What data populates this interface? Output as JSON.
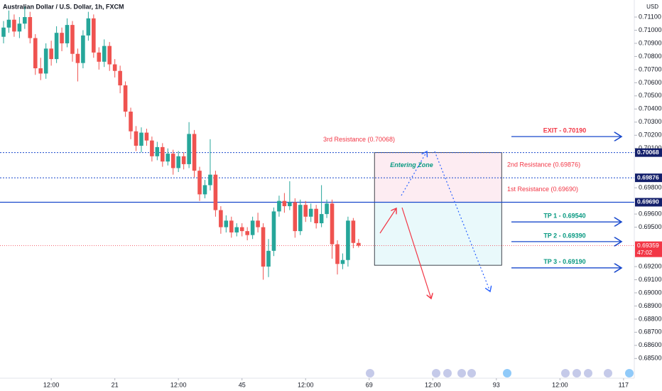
{
  "chart_data": {
    "type": "candlestick",
    "title": "Australian Dollar / U.S. Dollar, 1h, FXCM",
    "currency": "USD",
    "x": [
      0,
      1,
      2,
      3,
      4,
      5,
      6,
      7,
      8,
      9,
      10,
      11,
      12,
      13,
      14,
      15,
      16,
      17,
      18,
      19,
      20,
      21,
      22,
      23,
      24,
      25,
      26,
      27,
      28,
      29,
      30,
      31,
      32,
      33,
      34,
      35,
      36,
      37,
      38,
      39,
      40,
      41,
      42,
      43,
      44,
      45,
      46,
      47,
      48,
      49,
      50,
      51,
      52,
      53,
      54,
      55,
      56,
      57,
      58,
      59,
      60,
      61,
      62,
      63,
      64,
      65,
      66,
      67
    ],
    "open": [
      0.7095,
      0.7102,
      0.7108,
      0.7099,
      0.7105,
      0.711,
      0.7094,
      0.7071,
      0.7067,
      0.7086,
      0.7078,
      0.7098,
      0.709,
      0.7104,
      0.7082,
      0.7075,
      0.7096,
      0.7109,
      0.7083,
      0.7076,
      0.7088,
      0.7074,
      0.7069,
      0.7058,
      0.7038,
      0.7023,
      0.7012,
      0.7022,
      0.7016,
      0.7004,
      0.7011,
      0.7,
      0.7006,
      0.6995,
      0.7004,
      0.6998,
      0.7021,
      0.6993,
      0.6975,
      0.6982,
      0.699,
      0.6963,
      0.695,
      0.6955,
      0.6946,
      0.695,
      0.6947,
      0.6944,
      0.6955,
      0.695,
      0.692,
      0.6932,
      0.6962,
      0.697,
      0.6966,
      0.6969,
      0.6947,
      0.6967,
      0.6958,
      0.6964,
      0.6953,
      0.696,
      0.6968,
      0.6937,
      0.6922,
      0.6925,
      0.6955,
      0.6938
    ],
    "high": [
      0.7107,
      0.7115,
      0.7112,
      0.711,
      0.7118,
      0.7114,
      0.7097,
      0.7079,
      0.709,
      0.7092,
      0.7103,
      0.7102,
      0.7109,
      0.7107,
      0.7086,
      0.71,
      0.7114,
      0.7112,
      0.7087,
      0.7093,
      0.7091,
      0.7078,
      0.7073,
      0.7061,
      0.7041,
      0.7027,
      0.7026,
      0.7025,
      0.7019,
      0.7015,
      0.7014,
      0.701,
      0.7009,
      0.7008,
      0.7007,
      0.703,
      0.7024,
      0.6996,
      0.6986,
      0.7017,
      0.6993,
      0.6966,
      0.6959,
      0.6958,
      0.6953,
      0.6953,
      0.695,
      0.6958,
      0.6961,
      0.6953,
      0.6941,
      0.6965,
      0.6974,
      0.6976,
      0.6985,
      0.6972,
      0.6971,
      0.697,
      0.6968,
      0.6967,
      0.6982,
      0.6971,
      0.6971,
      0.694,
      0.693,
      0.6958,
      0.6957,
      0.6941
    ],
    "low": [
      0.709,
      0.7098,
      0.7095,
      0.7094,
      0.7101,
      0.709,
      0.7066,
      0.7062,
      0.7063,
      0.7073,
      0.7075,
      0.7084,
      0.7087,
      0.7076,
      0.7061,
      0.7071,
      0.7092,
      0.7079,
      0.707,
      0.7072,
      0.7069,
      0.7064,
      0.7052,
      0.7034,
      0.7017,
      0.7008,
      0.7007,
      0.7012,
      0.7,
      0.7001,
      0.6996,
      0.6997,
      0.699,
      0.6992,
      0.6994,
      0.6995,
      0.6988,
      0.697,
      0.6972,
      0.6978,
      0.6958,
      0.6945,
      0.6946,
      0.6942,
      0.6943,
      0.6943,
      0.694,
      0.6941,
      0.6946,
      0.691,
      0.6912,
      0.6928,
      0.6958,
      0.6961,
      0.6963,
      0.6942,
      0.6944,
      0.6954,
      0.6954,
      0.6949,
      0.695,
      0.6957,
      0.6926,
      0.6914,
      0.6918,
      0.692,
      0.6934,
      0.69345
    ],
    "close": [
      0.7102,
      0.7108,
      0.7099,
      0.7105,
      0.711,
      0.7094,
      0.7071,
      0.7067,
      0.7086,
      0.7078,
      0.7098,
      0.709,
      0.7104,
      0.7082,
      0.7075,
      0.7096,
      0.7109,
      0.7083,
      0.7076,
      0.7088,
      0.7074,
      0.7069,
      0.7058,
      0.7038,
      0.7023,
      0.7012,
      0.7022,
      0.7016,
      0.7004,
      0.7011,
      0.7,
      0.7006,
      0.6995,
      0.7004,
      0.6998,
      0.7021,
      0.6993,
      0.6975,
      0.6982,
      0.699,
      0.6963,
      0.695,
      0.6955,
      0.6946,
      0.695,
      0.6947,
      0.6944,
      0.6955,
      0.695,
      0.692,
      0.6932,
      0.6962,
      0.697,
      0.6966,
      0.6969,
      0.6947,
      0.6967,
      0.6958,
      0.6964,
      0.6953,
      0.696,
      0.6968,
      0.6937,
      0.6922,
      0.6925,
      0.6955,
      0.6938,
      0.69359
    ],
    "up_color": "#26a69a",
    "down_color": "#ef5350",
    "xlim": [
      -0.67,
      119.03
    ],
    "xticks": [
      {
        "value": 9,
        "label": "12:00"
      },
      21,
      {
        "value": 33,
        "label": "12:00"
      },
      45,
      {
        "value": 57,
        "label": "12:00"
      },
      69,
      {
        "value": 81,
        "label": "12:00"
      },
      93,
      {
        "value": 105,
        "label": "12:00"
      },
      117
    ],
    "ylim": [
      0.6835,
      0.7123
    ],
    "yticks": [
      {
        "value": 0.711,
        "label": "0.71100"
      },
      {
        "value": 0.71,
        "label": "0.71000"
      },
      {
        "value": 0.709,
        "label": "0.70900"
      },
      {
        "value": 0.708,
        "label": "0.70800"
      },
      {
        "value": 0.707,
        "label": "0.70700"
      },
      {
        "value": 0.706,
        "label": "0.70600"
      },
      {
        "value": 0.705,
        "label": "0.70500"
      },
      {
        "value": 0.704,
        "label": "0.70400"
      },
      {
        "value": 0.703,
        "label": "0.70300"
      },
      {
        "value": 0.702,
        "label": "0.70200"
      },
      {
        "value": 0.701,
        "label": "0.70100"
      },
      {
        "value": 0.698,
        "label": "0.69800"
      },
      {
        "value": 0.696,
        "label": "0.69600"
      },
      {
        "value": 0.695,
        "label": "0.69500"
      },
      {
        "value": 0.692,
        "label": "0.69200"
      },
      {
        "value": 0.691,
        "label": "0.69100"
      },
      {
        "value": 0.69,
        "label": "0.69000"
      },
      {
        "value": 0.689,
        "label": "0.68900"
      },
      {
        "value": 0.688,
        "label": "0.68800"
      },
      {
        "value": 0.687,
        "label": "0.68700"
      },
      {
        "value": 0.686,
        "label": "0.68600"
      },
      {
        "value": 0.685,
        "label": "0.68500"
      }
    ],
    "last_price": {
      "value": 0.69359,
      "label": "0.69359"
    },
    "countdown": "47:02",
    "levels": [
      {
        "name": "3rd Resistance (0.70068)",
        "value": 0.70068,
        "label": "0.70068",
        "style": "dotted"
      },
      {
        "name": "2nd Resistance (0.69876)",
        "value": 0.69876,
        "label": "0.69876",
        "style": "dotted"
      },
      {
        "name": "1st Resistance (0.69690)",
        "value": 0.6969,
        "label": "0.69690",
        "style": "solid"
      }
    ],
    "zones": [
      {
        "name": "Entering Zone",
        "top": 0.70068,
        "bottom": 0.6969,
        "x_range": [
          70,
          94
        ],
        "color": "#fce4ec"
      },
      {
        "top": 0.6969,
        "bottom": 0.6921,
        "x_range": [
          70,
          94
        ],
        "color": "#e0f7fa"
      }
    ],
    "targets": [
      {
        "name": "EXIT - 0.70190",
        "value": 0.7019,
        "color": "#f23645"
      },
      {
        "name": "TP 1 - 0.69540",
        "value": 0.6954,
        "color": "#089981"
      },
      {
        "name": "TP 2 - 0.69390",
        "value": 0.6939,
        "color": "#089981"
      },
      {
        "name": "TP 3 - 0.69190",
        "value": 0.6919,
        "color": "#089981"
      }
    ]
  }
}
